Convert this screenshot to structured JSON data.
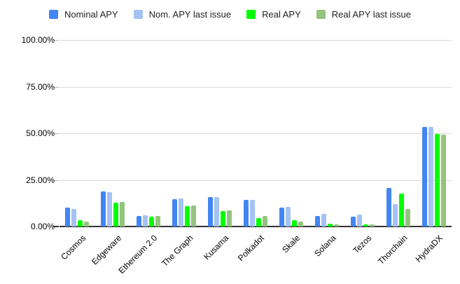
{
  "chart_data": {
    "type": "bar",
    "title": "",
    "xlabel": "",
    "ylabel": "",
    "ylim": [
      0,
      100
    ],
    "grid": true,
    "legend_position": "top",
    "y_tick_labels": [
      "0.00%",
      "25.00%",
      "50.00%",
      "75.00%",
      "100.00%"
    ],
    "categories": [
      "Cosmos",
      "Edgeware",
      "Ethereum 2.0",
      "The Graph",
      "Kusama",
      "Polkadot",
      "Skale",
      "Solana",
      "Tezos",
      "Thorchain",
      "HydraDX"
    ],
    "series": [
      {
        "name": "Nominal APY",
        "color": "#4285f4",
        "values": [
          10.3,
          18.8,
          5.7,
          14.5,
          15.7,
          14.3,
          10.0,
          5.6,
          5.3,
          20.5,
          53.2
        ]
      },
      {
        "name": "Nom. APY last issue",
        "color": "#a4c2f4",
        "values": [
          9.5,
          18.4,
          6.1,
          14.9,
          15.9,
          14.1,
          10.7,
          6.8,
          6.4,
          12.0,
          53.2
        ]
      },
      {
        "name": "Real APY",
        "color": "#00ff00",
        "values": [
          3.2,
          12.9,
          5.3,
          10.9,
          8.2,
          4.5,
          3.2,
          1.5,
          1.2,
          17.5,
          49.5
        ]
      },
      {
        "name": "Real APY last issue",
        "color": "#93c47d",
        "values": [
          2.5,
          13.2,
          5.7,
          11.4,
          8.6,
          5.5,
          2.8,
          1.2,
          1.0,
          9.4,
          49.2
        ]
      }
    ],
    "colors": {
      "gridline": "#d9d9d9",
      "axis_line": "#333333",
      "tick": "#b7b7b7",
      "axis_text": "#000000",
      "legend_text": "#1f1f1f",
      "background": "#ffffff"
    }
  }
}
